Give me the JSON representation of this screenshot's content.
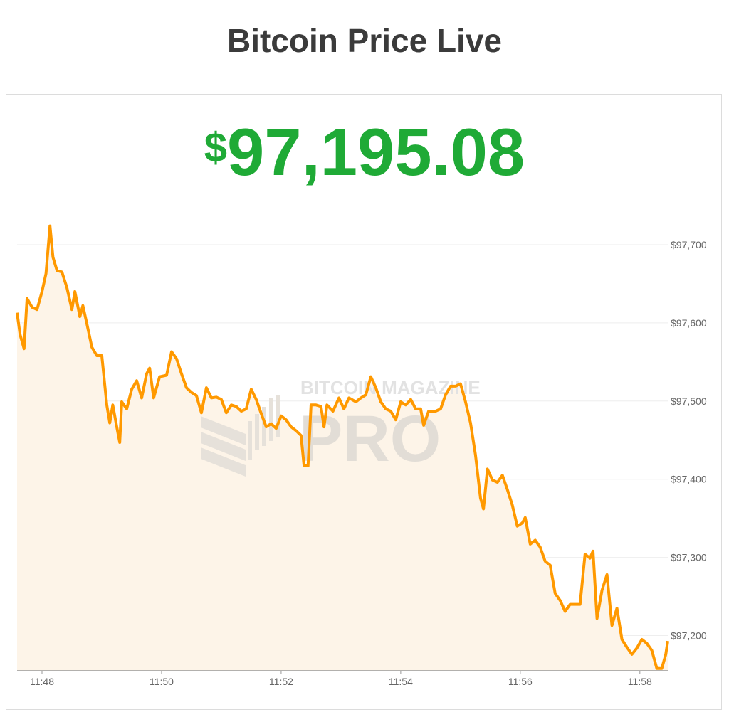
{
  "header": {
    "title": "Bitcoin Price Live"
  },
  "price": {
    "currency_symbol": "$",
    "value": "97,195.08",
    "color": "#1faa36"
  },
  "watermark": {
    "line1": "BITCOIN MAGAZINE",
    "line2": "PRO"
  },
  "chart_data": {
    "type": "area",
    "title": "",
    "xlabel": "",
    "ylabel": "",
    "line_color": "#ff9900",
    "fill_color": "#fdf4e8",
    "grid": true,
    "y_axis_position": "right",
    "xlim": [
      "11:47:35",
      "11:58:28"
    ],
    "ylim": [
      97155,
      97740
    ],
    "x_ticks": [
      "11:48",
      "11:50",
      "11:52",
      "11:54",
      "11:56",
      "11:58"
    ],
    "y_ticks": [
      97200,
      97300,
      97400,
      97500,
      97600,
      97700
    ],
    "y_tick_labels": [
      "$97,200",
      "$97,300",
      "$97,400",
      "$97,500",
      "$97,600",
      "$97,700"
    ],
    "points": [
      [
        "11:47:35",
        97613
      ],
      [
        "11:47:38",
        97585
      ],
      [
        "11:47:42",
        97567
      ],
      [
        "11:47:45",
        97631
      ],
      [
        "11:47:50",
        97620
      ],
      [
        "11:47:55",
        97617
      ],
      [
        "11:48:00",
        97640
      ],
      [
        "11:48:04",
        97663
      ],
      [
        "11:48:08",
        97724
      ],
      [
        "11:48:11",
        97684
      ],
      [
        "11:48:15",
        97667
      ],
      [
        "11:48:20",
        97665
      ],
      [
        "11:48:25",
        97645
      ],
      [
        "11:48:30",
        97617
      ],
      [
        "11:48:33",
        97640
      ],
      [
        "11:48:38",
        97608
      ],
      [
        "11:48:41",
        97622
      ],
      [
        "11:48:45",
        97599
      ],
      [
        "11:48:50",
        97569
      ],
      [
        "11:48:55",
        97558
      ],
      [
        "11:49:00",
        97558
      ],
      [
        "11:49:05",
        97495
      ],
      [
        "11:49:08",
        97472
      ],
      [
        "11:49:11",
        97495
      ],
      [
        "11:49:15",
        97467
      ],
      [
        "11:49:18",
        97447
      ],
      [
        "11:49:20",
        97499
      ],
      [
        "11:49:25",
        97490
      ],
      [
        "11:49:30",
        97515
      ],
      [
        "11:49:35",
        97526
      ],
      [
        "11:49:40",
        97504
      ],
      [
        "11:49:45",
        97535
      ],
      [
        "11:49:48",
        97542
      ],
      [
        "11:49:52",
        97504
      ],
      [
        "11:49:58",
        97531
      ],
      [
        "11:50:05",
        97533
      ],
      [
        "11:50:10",
        97563
      ],
      [
        "11:50:15",
        97554
      ],
      [
        "11:50:20",
        97535
      ],
      [
        "11:50:25",
        97517
      ],
      [
        "11:50:30",
        97511
      ],
      [
        "11:50:35",
        97507
      ],
      [
        "11:50:40",
        97485
      ],
      [
        "11:50:45",
        97517
      ],
      [
        "11:50:50",
        97504
      ],
      [
        "11:50:55",
        97505
      ],
      [
        "11:51:00",
        97502
      ],
      [
        "11:51:05",
        97485
      ],
      [
        "11:51:10",
        97495
      ],
      [
        "11:51:15",
        97493
      ],
      [
        "11:51:20",
        97487
      ],
      [
        "11:51:25",
        97490
      ],
      [
        "11:51:30",
        97515
      ],
      [
        "11:51:35",
        97502
      ],
      [
        "11:51:40",
        97484
      ],
      [
        "11:51:45",
        97467
      ],
      [
        "11:51:50",
        97471
      ],
      [
        "11:51:55",
        97465
      ],
      [
        "11:52:00",
        97481
      ],
      [
        "11:52:05",
        97476
      ],
      [
        "11:52:10",
        97467
      ],
      [
        "11:52:15",
        97462
      ],
      [
        "11:52:20",
        97456
      ],
      [
        "11:52:23",
        97417
      ],
      [
        "11:52:27",
        97417
      ],
      [
        "11:52:30",
        97495
      ],
      [
        "11:52:35",
        97495
      ],
      [
        "11:52:40",
        97493
      ],
      [
        "11:52:43",
        97467
      ],
      [
        "11:52:46",
        97495
      ],
      [
        "11:52:52",
        97487
      ],
      [
        "11:52:58",
        97504
      ],
      [
        "11:53:03",
        97490
      ],
      [
        "11:53:08",
        97504
      ],
      [
        "11:53:15",
        97499
      ],
      [
        "11:53:20",
        97504
      ],
      [
        "11:53:25",
        97508
      ],
      [
        "11:53:30",
        97531
      ],
      [
        "11:53:35",
        97517
      ],
      [
        "11:53:40",
        97499
      ],
      [
        "11:53:45",
        97490
      ],
      [
        "11:53:50",
        97487
      ],
      [
        "11:53:55",
        97476
      ],
      [
        "11:54:00",
        97499
      ],
      [
        "11:54:05",
        97495
      ],
      [
        "11:54:10",
        97502
      ],
      [
        "11:54:15",
        97490
      ],
      [
        "11:54:20",
        97490
      ],
      [
        "11:54:23",
        97469
      ],
      [
        "11:54:28",
        97487
      ],
      [
        "11:54:35",
        97487
      ],
      [
        "11:54:40",
        97490
      ],
      [
        "11:54:45",
        97508
      ],
      [
        "11:54:50",
        97519
      ],
      [
        "11:54:55",
        97519
      ],
      [
        "11:55:00",
        97522
      ],
      [
        "11:55:05",
        97499
      ],
      [
        "11:55:10",
        97472
      ],
      [
        "11:55:15",
        97431
      ],
      [
        "11:55:20",
        97376
      ],
      [
        "11:55:23",
        97362
      ],
      [
        "11:55:27",
        97413
      ],
      [
        "11:55:32",
        97399
      ],
      [
        "11:55:37",
        97396
      ],
      [
        "11:55:42",
        97405
      ],
      [
        "11:55:47",
        97387
      ],
      [
        "11:55:52",
        97367
      ],
      [
        "11:55:57",
        97340
      ],
      [
        "11:56:02",
        97344
      ],
      [
        "11:56:05",
        97351
      ],
      [
        "11:56:10",
        97317
      ],
      [
        "11:56:15",
        97322
      ],
      [
        "11:56:20",
        97313
      ],
      [
        "11:56:25",
        97295
      ],
      [
        "11:56:30",
        97290
      ],
      [
        "11:56:35",
        97254
      ],
      [
        "11:56:40",
        97245
      ],
      [
        "11:56:45",
        97231
      ],
      [
        "11:56:50",
        97240
      ],
      [
        "11:56:55",
        97240
      ],
      [
        "11:57:00",
        97240
      ],
      [
        "11:57:05",
        97304
      ],
      [
        "11:57:10",
        97299
      ],
      [
        "11:57:13",
        97308
      ],
      [
        "11:57:17",
        97222
      ],
      [
        "11:57:22",
        97258
      ],
      [
        "11:57:27",
        97278
      ],
      [
        "11:57:32",
        97213
      ],
      [
        "11:57:37",
        97235
      ],
      [
        "11:57:42",
        97195
      ],
      [
        "11:57:47",
        97185
      ],
      [
        "11:57:52",
        97176
      ],
      [
        "11:57:57",
        97184
      ],
      [
        "11:58:02",
        97195
      ],
      [
        "11:58:07",
        97190
      ],
      [
        "11:58:12",
        97181
      ],
      [
        "11:58:17",
        97158
      ],
      [
        "11:58:22",
        97158
      ],
      [
        "11:58:26",
        97176
      ],
      [
        "11:58:28",
        97193
      ]
    ]
  }
}
